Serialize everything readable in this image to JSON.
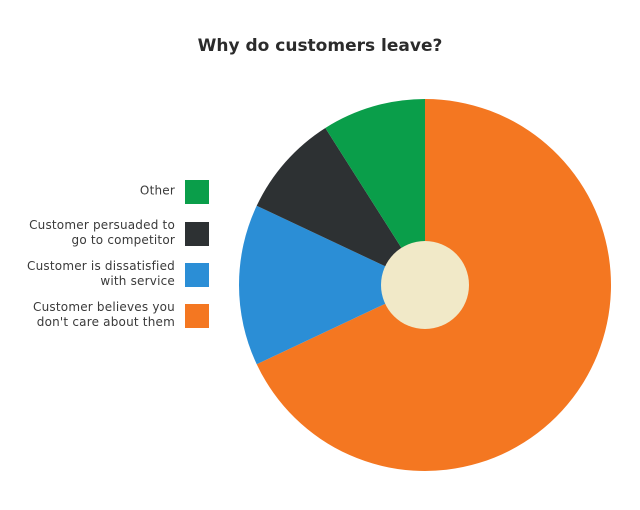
{
  "chart_data": {
    "type": "pie",
    "title": "Why do customers leave?",
    "legend_position": "left",
    "slices": [
      {
        "label_lines": [
          "Customer believes you",
          "don't care about them"
        ],
        "value": 68,
        "color": "#f47721"
      },
      {
        "label_lines": [
          "Customer is dissatisfied",
          "with service"
        ],
        "value": 14,
        "color": "#2b8ed6"
      },
      {
        "label_lines": [
          "Customer persuaded to",
          "go to competitor"
        ],
        "value": 9,
        "color": "#2d3133"
      },
      {
        "label_lines": [
          "Other"
        ],
        "value": 9,
        "color": "#0a9e4a"
      }
    ],
    "center_color": "#f1e9c8"
  }
}
